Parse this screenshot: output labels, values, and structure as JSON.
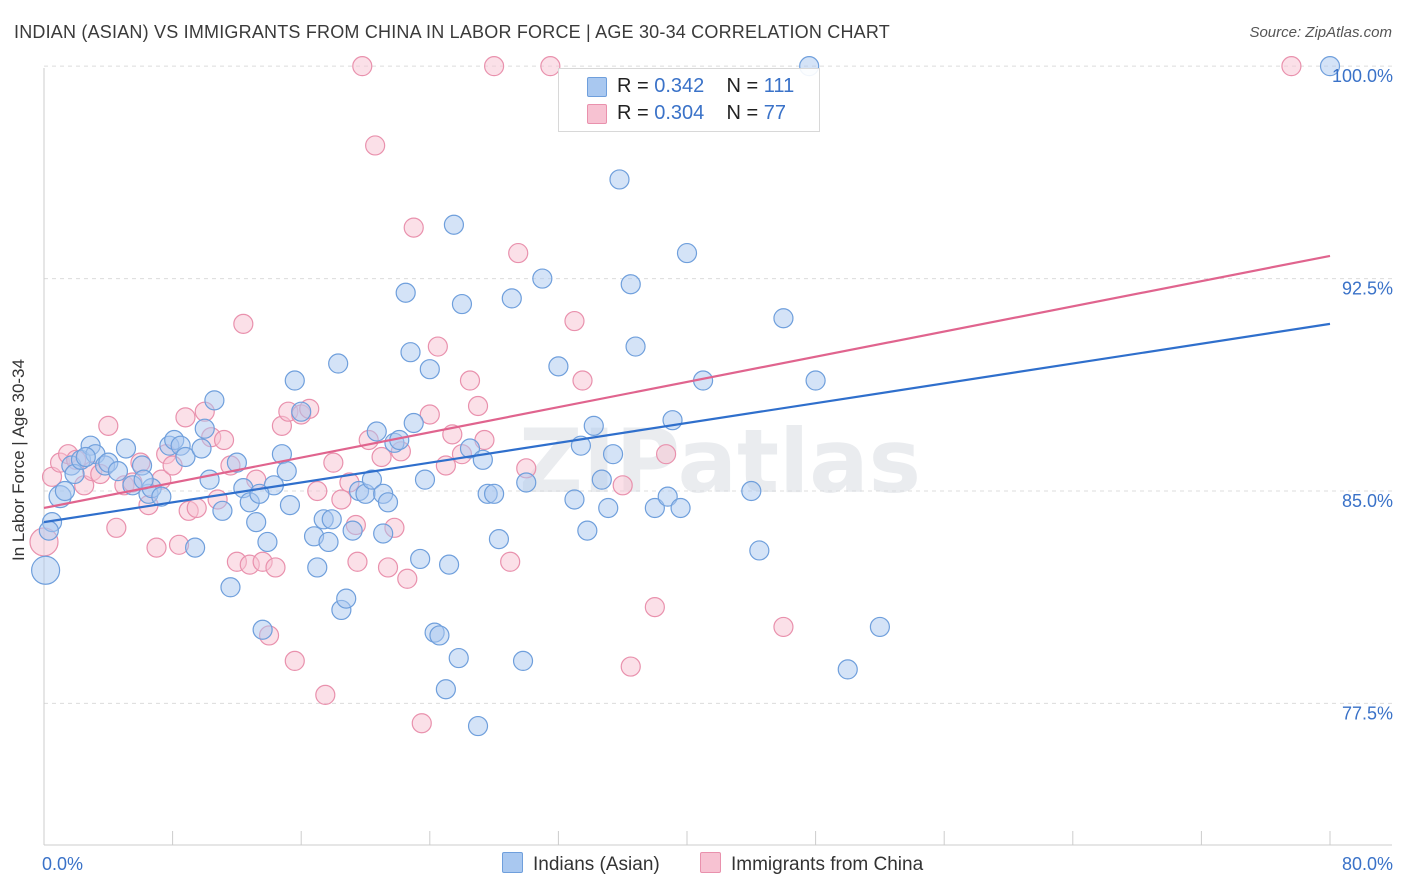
{
  "title": "INDIAN (ASIAN) VS IMMIGRANTS FROM CHINA IN LABOR FORCE | AGE 30-34 CORRELATION CHART",
  "source": "Source: ZipAtlas.com",
  "watermark": "ZIPatlas",
  "legend": {
    "rows": [
      {
        "r_label": "R =",
        "r_value": "0.342",
        "n_label": "N =",
        "n_value": "111"
      },
      {
        "r_label": "R =",
        "r_value": "0.304",
        "n_label": "N =",
        "n_value": "77"
      }
    ]
  },
  "bottom_legend": [
    "Indians (Asian)",
    "Immigrants from China"
  ],
  "colors": {
    "blue_fill": "#a9c8f0",
    "blue_stroke": "#6f9fdc",
    "blue_line": "#2f6fcc",
    "pink_fill": "#f7c2d2",
    "pink_stroke": "#e991ad",
    "pink_line": "#e0648e",
    "tick_text": "#3a72c8",
    "grid": "#dcdcdc"
  },
  "chart_data": {
    "type": "scatter",
    "title": "INDIAN (ASIAN) VS IMMIGRANTS FROM CHINA IN LABOR FORCE | AGE 30-34 CORRELATION CHART",
    "xlabel": "",
    "ylabel": "In Labor Force | Age 30-34",
    "xlim": [
      0,
      80
    ],
    "ylim": [
      72.5,
      100.5
    ],
    "x_tick_labels": [
      "0.0%",
      "80.0%"
    ],
    "y_ticks": [
      77.5,
      85.0,
      92.5,
      100.0
    ],
    "y_tick_labels": [
      "77.5%",
      "85.0%",
      "92.5%",
      "100.0%"
    ],
    "grid": true,
    "series": [
      {
        "name": "Indians (Asian)",
        "color": "#a9c8f0",
        "trend": {
          "x": [
            0,
            80
          ],
          "y": [
            83.9,
            90.9
          ]
        },
        "points": [
          [
            0.1,
            82.2
          ],
          [
            0.5,
            83.9
          ],
          [
            1.0,
            84.8
          ],
          [
            1.7,
            85.9
          ],
          [
            1.9,
            85.6
          ],
          [
            2.3,
            86.1
          ],
          [
            2.9,
            86.6
          ],
          [
            3.2,
            86.3
          ],
          [
            3.8,
            85.9
          ],
          [
            4.0,
            86.0
          ],
          [
            4.6,
            85.7
          ],
          [
            5.1,
            86.5
          ],
          [
            5.5,
            85.2
          ],
          [
            6.1,
            85.9
          ],
          [
            6.5,
            84.9
          ],
          [
            6.7,
            85.1
          ],
          [
            7.3,
            84.8
          ],
          [
            7.8,
            86.6
          ],
          [
            8.1,
            86.8
          ],
          [
            8.5,
            86.6
          ],
          [
            8.8,
            86.2
          ],
          [
            9.4,
            83.0
          ],
          [
            9.8,
            86.5
          ],
          [
            10.0,
            87.2
          ],
          [
            10.3,
            85.4
          ],
          [
            10.6,
            88.2
          ],
          [
            11.1,
            84.3
          ],
          [
            11.6,
            81.6
          ],
          [
            12.0,
            86.0
          ],
          [
            12.4,
            85.1
          ],
          [
            12.8,
            84.6
          ],
          [
            13.2,
            83.9
          ],
          [
            13.6,
            80.1
          ],
          [
            13.9,
            83.2
          ],
          [
            14.3,
            85.2
          ],
          [
            14.8,
            86.3
          ],
          [
            15.1,
            85.7
          ],
          [
            15.3,
            84.5
          ],
          [
            15.6,
            88.9
          ],
          [
            16.0,
            87.8
          ],
          [
            16.8,
            83.4
          ],
          [
            17.0,
            82.3
          ],
          [
            17.4,
            84.0
          ],
          [
            17.7,
            83.2
          ],
          [
            17.9,
            84.0
          ],
          [
            18.3,
            89.5
          ],
          [
            18.5,
            80.8
          ],
          [
            18.8,
            81.2
          ],
          [
            19.2,
            83.6
          ],
          [
            19.6,
            85.0
          ],
          [
            20.0,
            84.9
          ],
          [
            20.4,
            85.4
          ],
          [
            20.7,
            87.1
          ],
          [
            21.1,
            84.9
          ],
          [
            21.4,
            84.6
          ],
          [
            21.8,
            86.7
          ],
          [
            22.1,
            86.8
          ],
          [
            22.5,
            92.0
          ],
          [
            22.8,
            89.9
          ],
          [
            23.0,
            87.4
          ],
          [
            23.4,
            82.6
          ],
          [
            23.7,
            85.4
          ],
          [
            24.0,
            89.3
          ],
          [
            24.3,
            80.0
          ],
          [
            24.6,
            79.9
          ],
          [
            25.0,
            78.0
          ],
          [
            25.2,
            82.4
          ],
          [
            25.5,
            94.4
          ],
          [
            25.8,
            79.1
          ],
          [
            26.0,
            91.6
          ],
          [
            26.5,
            86.5
          ],
          [
            27.0,
            76.7
          ],
          [
            27.3,
            86.1
          ],
          [
            27.6,
            84.9
          ],
          [
            28.0,
            84.9
          ],
          [
            28.3,
            83.3
          ],
          [
            29.1,
            91.8
          ],
          [
            29.8,
            79.0
          ],
          [
            30.0,
            85.3
          ],
          [
            31.0,
            92.5
          ],
          [
            32.0,
            89.4
          ],
          [
            33.0,
            84.7
          ],
          [
            33.4,
            86.6
          ],
          [
            33.8,
            83.6
          ],
          [
            34.2,
            87.3
          ],
          [
            34.7,
            85.4
          ],
          [
            35.1,
            84.4
          ],
          [
            35.4,
            86.3
          ],
          [
            35.8,
            96.0
          ],
          [
            36.5,
            92.3
          ],
          [
            36.8,
            90.1
          ],
          [
            38.0,
            84.4
          ],
          [
            38.8,
            84.8
          ],
          [
            39.1,
            87.5
          ],
          [
            39.6,
            84.4
          ],
          [
            40.0,
            93.4
          ],
          [
            41.0,
            88.9
          ],
          [
            44.0,
            85.0
          ],
          [
            44.5,
            82.9
          ],
          [
            46.0,
            91.1
          ],
          [
            48.0,
            88.9
          ],
          [
            50.0,
            78.7
          ],
          [
            52.0,
            80.2
          ],
          [
            0.3,
            83.6
          ],
          [
            1.3,
            85.0
          ],
          [
            2.6,
            86.2
          ],
          [
            6.2,
            85.4
          ],
          [
            13.4,
            84.9
          ],
          [
            21.1,
            83.5
          ],
          [
            47.6,
            100.0
          ],
          [
            80.0,
            100.0
          ]
        ]
      },
      {
        "name": "Immigrants from China",
        "color": "#f7c2d2",
        "trend": {
          "x": [
            0,
            80
          ],
          "y": [
            84.4,
            93.3
          ]
        },
        "points": [
          [
            0.0,
            83.2
          ],
          [
            0.5,
            85.5
          ],
          [
            1.0,
            86.0
          ],
          [
            1.5,
            86.3
          ],
          [
            2.0,
            86.1
          ],
          [
            2.5,
            85.2
          ],
          [
            3.0,
            85.7
          ],
          [
            3.5,
            85.6
          ],
          [
            4.0,
            87.3
          ],
          [
            4.5,
            83.7
          ],
          [
            5.0,
            85.2
          ],
          [
            5.5,
            85.3
          ],
          [
            6.0,
            86.0
          ],
          [
            6.5,
            84.5
          ],
          [
            7.0,
            83.0
          ],
          [
            7.3,
            85.4
          ],
          [
            7.6,
            86.3
          ],
          [
            8.0,
            85.9
          ],
          [
            8.4,
            83.1
          ],
          [
            8.8,
            87.6
          ],
          [
            9.0,
            84.3
          ],
          [
            9.5,
            84.4
          ],
          [
            10.0,
            87.8
          ],
          [
            10.4,
            86.9
          ],
          [
            10.8,
            84.7
          ],
          [
            11.2,
            86.8
          ],
          [
            11.6,
            85.9
          ],
          [
            12.0,
            82.5
          ],
          [
            12.4,
            90.9
          ],
          [
            12.8,
            82.4
          ],
          [
            13.2,
            85.4
          ],
          [
            13.6,
            82.5
          ],
          [
            14.0,
            79.9
          ],
          [
            14.4,
            82.3
          ],
          [
            14.8,
            87.3
          ],
          [
            15.2,
            87.8
          ],
          [
            15.6,
            79.0
          ],
          [
            16.0,
            87.7
          ],
          [
            16.5,
            87.9
          ],
          [
            17.0,
            85.0
          ],
          [
            17.5,
            77.8
          ],
          [
            18.0,
            86.0
          ],
          [
            18.5,
            84.7
          ],
          [
            19.0,
            85.3
          ],
          [
            19.4,
            83.8
          ],
          [
            19.8,
            100.0
          ],
          [
            20.2,
            86.8
          ],
          [
            20.6,
            97.2
          ],
          [
            21.0,
            86.2
          ],
          [
            21.4,
            82.3
          ],
          [
            21.8,
            83.7
          ],
          [
            22.2,
            86.4
          ],
          [
            22.6,
            81.9
          ],
          [
            23.0,
            94.3
          ],
          [
            23.5,
            76.8
          ],
          [
            24.0,
            87.7
          ],
          [
            24.5,
            90.1
          ],
          [
            25.0,
            85.9
          ],
          [
            25.4,
            87.0
          ],
          [
            26.0,
            86.3
          ],
          [
            26.5,
            88.9
          ],
          [
            27.0,
            88.0
          ],
          [
            27.4,
            86.8
          ],
          [
            28.0,
            100.0
          ],
          [
            29.0,
            82.5
          ],
          [
            29.5,
            93.4
          ],
          [
            30.0,
            85.8
          ],
          [
            31.5,
            100.0
          ],
          [
            33.0,
            91.0
          ],
          [
            33.5,
            88.9
          ],
          [
            36.0,
            85.2
          ],
          [
            38.0,
            80.9
          ],
          [
            46.0,
            80.2
          ],
          [
            36.5,
            78.8
          ],
          [
            38.7,
            86.3
          ],
          [
            19.5,
            82.5
          ],
          [
            77.6,
            100.0
          ]
        ]
      }
    ]
  }
}
